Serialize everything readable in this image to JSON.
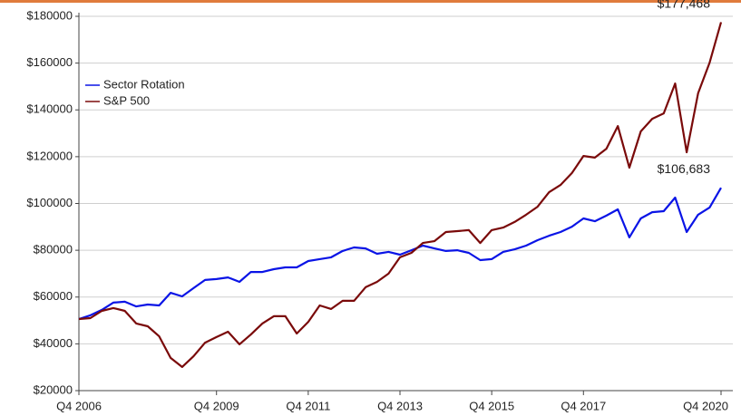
{
  "chart_data": {
    "type": "line",
    "categories": [
      "Q4 2006",
      null,
      null,
      null,
      null,
      null,
      null,
      null,
      null,
      null,
      null,
      null,
      "Q4 2009",
      null,
      null,
      null,
      null,
      null,
      null,
      null,
      "Q4 2011",
      null,
      null,
      null,
      null,
      null,
      null,
      null,
      "Q4 2013",
      null,
      null,
      null,
      null,
      null,
      null,
      null,
      "Q4 2015",
      null,
      null,
      null,
      null,
      null,
      null,
      null,
      "Q4 2017",
      null,
      null,
      null,
      null,
      null,
      null,
      null,
      null,
      null,
      null,
      null,
      "Q4 2020"
    ],
    "series": [
      {
        "name": "Sector Rotation",
        "color": "#0a14e6",
        "values": [
          50600,
          52200,
          54500,
          57600,
          58000,
          56000,
          56800,
          56400,
          61800,
          60300,
          63800,
          67300,
          67700,
          68400,
          66500,
          70700,
          70700,
          71900,
          72700,
          72700,
          75400,
          76200,
          77000,
          79700,
          81200,
          80800,
          78500,
          79300,
          78100,
          80000,
          82000,
          80800,
          79700,
          80000,
          78900,
          75800,
          76200,
          79300,
          80400,
          82000,
          84300,
          86200,
          87800,
          90100,
          93600,
          92400,
          94800,
          97500,
          85500,
          93600,
          96300,
          96700,
          102500,
          87800,
          95200,
          98300,
          106683
        ],
        "value_labels": [
          null,
          null,
          null,
          null,
          null,
          null,
          null,
          null,
          null,
          null,
          null,
          null,
          null,
          null,
          null,
          null,
          null,
          null,
          null,
          null,
          null,
          null,
          null,
          null,
          null,
          null,
          null,
          null,
          null,
          null,
          null,
          null,
          null,
          null,
          null,
          null,
          null,
          null,
          null,
          null,
          null,
          null,
          null,
          null,
          null,
          null,
          null,
          null,
          null,
          null,
          null,
          null,
          null,
          null,
          null,
          null,
          "$106,683"
        ]
      },
      {
        "name": "S&P 500",
        "color": "#7a0a0a",
        "values": [
          50600,
          51000,
          54100,
          55300,
          54100,
          48700,
          47500,
          43200,
          34000,
          30100,
          34700,
          40500,
          42900,
          45200,
          39800,
          44000,
          48700,
          51800,
          51800,
          44400,
          49400,
          56400,
          54900,
          58400,
          58400,
          64200,
          66500,
          70000,
          77000,
          78900,
          83100,
          83900,
          87800,
          88200,
          88600,
          83100,
          88600,
          89700,
          92100,
          95200,
          98600,
          104800,
          107900,
          113000,
          120300,
          119600,
          123400,
          133100,
          115300,
          130800,
          136200,
          138500,
          151300,
          121900,
          147100,
          160200,
          177468
        ],
        "value_labels": [
          null,
          null,
          null,
          null,
          null,
          null,
          null,
          null,
          null,
          null,
          null,
          null,
          null,
          null,
          null,
          null,
          null,
          null,
          null,
          null,
          null,
          null,
          null,
          null,
          null,
          null,
          null,
          null,
          null,
          null,
          null,
          null,
          null,
          null,
          null,
          null,
          null,
          null,
          null,
          null,
          null,
          null,
          null,
          null,
          null,
          null,
          null,
          null,
          null,
          null,
          null,
          null,
          null,
          null,
          null,
          null,
          "$177,468"
        ]
      }
    ],
    "ylim": [
      20000,
      180000
    ],
    "yticks": [
      {
        "value": 20000,
        "label": "$20000"
      },
      {
        "value": 40000,
        "label": "$40000"
      },
      {
        "value": 60000,
        "label": "$60000"
      },
      {
        "value": 80000,
        "label": "$80000"
      },
      {
        "value": 100000,
        "label": "$100000"
      },
      {
        "value": 120000,
        "label": "$120000"
      },
      {
        "value": 140000,
        "label": "$140000"
      },
      {
        "value": 160000,
        "label": "$160000"
      },
      {
        "value": 180000,
        "label": "$180000"
      }
    ],
    "grid": true,
    "legend": "upper left"
  }
}
